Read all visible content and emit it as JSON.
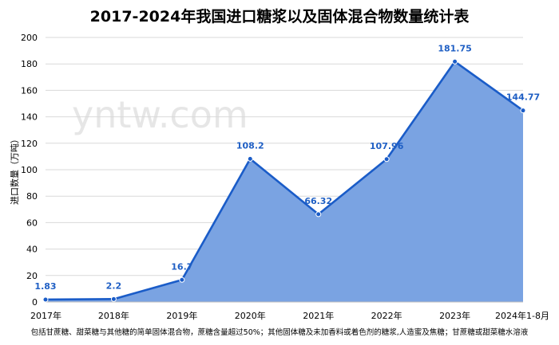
{
  "watermark": "yntw.com",
  "chart_data": {
    "type": "area",
    "title": "2017-2024年我国进口糖浆以及固体混合物数量统计表",
    "ylabel": "进口数量（万吨）",
    "xlabel": "",
    "categories": [
      "2017年",
      "2018年",
      "2019年",
      "2020年",
      "2021年",
      "2022年",
      "2023年",
      "2024年1-8月"
    ],
    "values": [
      1.83,
      2.2,
      16.7,
      108.2,
      66.32,
      107.96,
      181.75,
      144.77
    ],
    "value_labels": [
      "1.83",
      "2.2",
      "16.7",
      "108.2",
      "66.32",
      "107.96",
      "181.75",
      "144.77"
    ],
    "ylim": [
      0,
      200
    ],
    "yticks": [
      0,
      20,
      40,
      60,
      80,
      100,
      120,
      140,
      160,
      180,
      200
    ],
    "grid": true,
    "colors": {
      "line": "#1a5cc8",
      "fill": "#7aa3e2",
      "label": "#1f5fc4"
    },
    "footnote": "包括甘蔗糖、甜菜糖与其他糖的简单固体混合物，蔗糖含量超过50%；其他固体糖及未加香料或着色剂的糖浆,人造蜜及焦糖；甘蔗糖或甜菜糖水溶液"
  }
}
